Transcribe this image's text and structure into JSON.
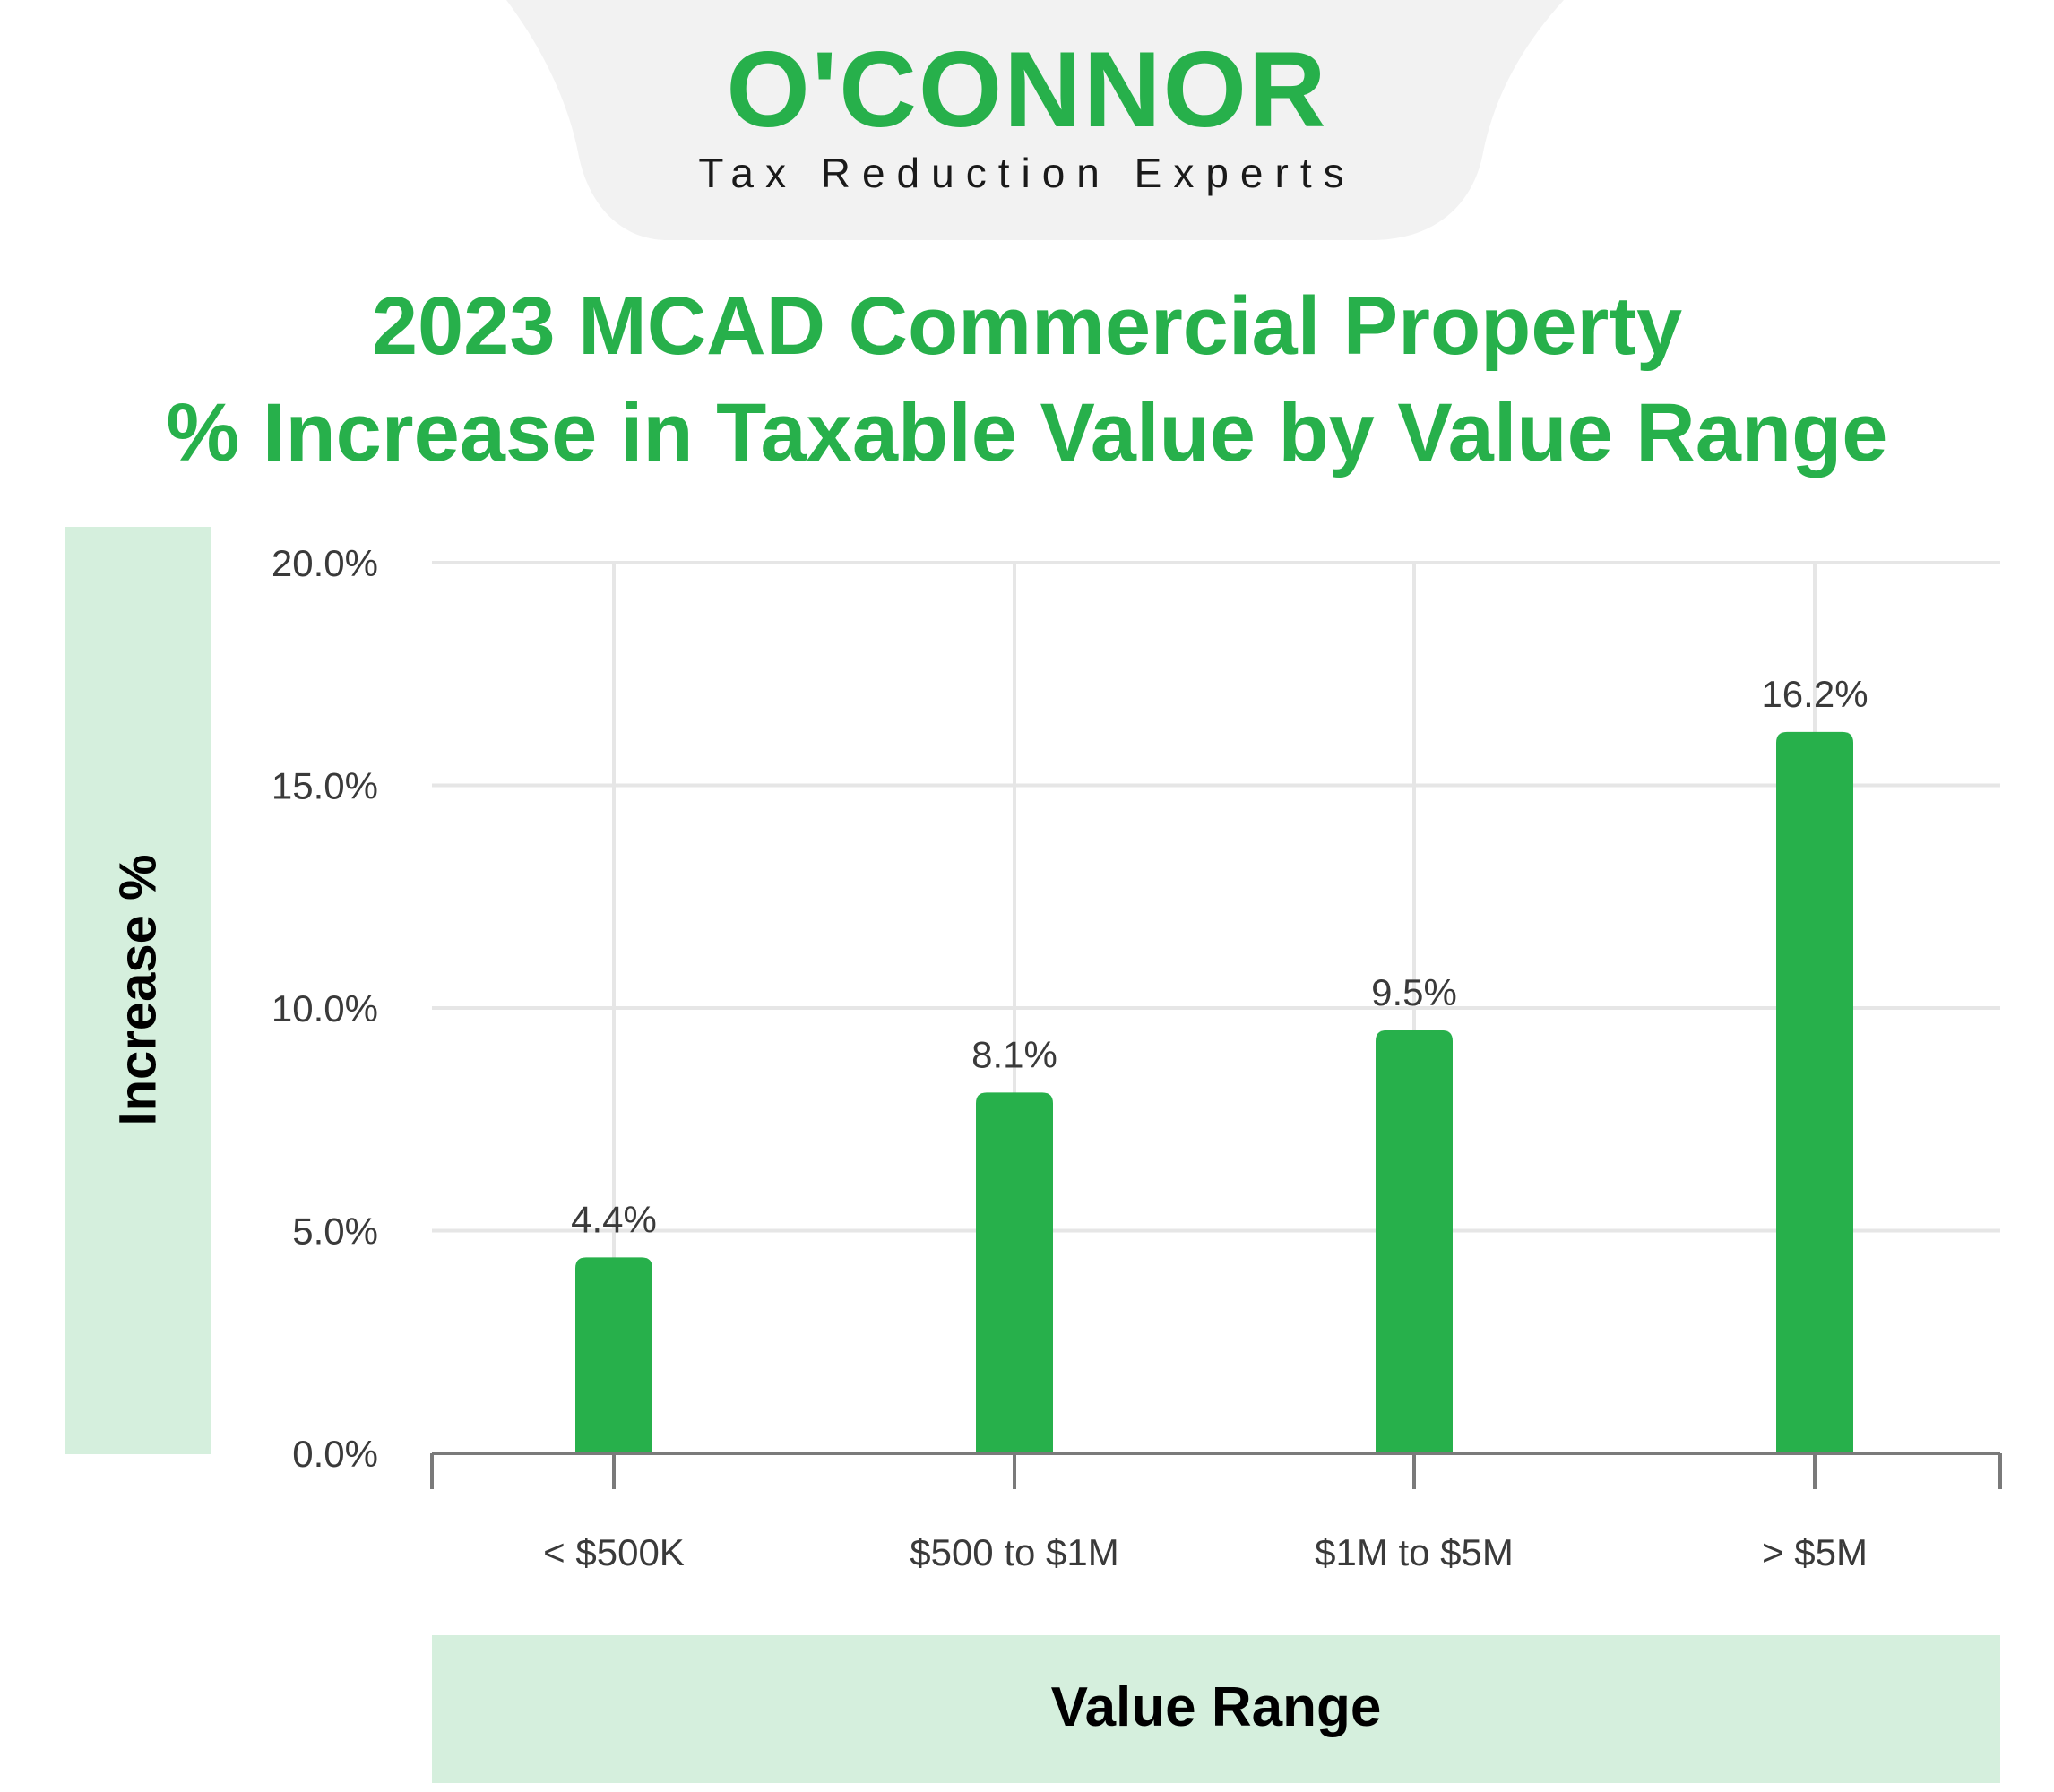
{
  "header": {
    "brand": "O'CONNOR",
    "tagline": "Tax Reduction Experts"
  },
  "colors": {
    "brand_green": "#27b04b",
    "label_band": "#d5efdd",
    "header_tab": "#f2f2f2",
    "grid": "#e6e6e6",
    "axis": "#7a7a7a"
  },
  "chart_data": {
    "type": "bar",
    "title": "2023 MCAD Commercial Property",
    "subtitle": "% Increase in Taxable Value by Value Range",
    "xlabel": "Value Range",
    "ylabel": "Increase %",
    "categories": [
      "< $500K",
      "$500 to $1M",
      "$1M to $5M",
      "> $5M"
    ],
    "values": [
      4.4,
      8.1,
      9.5,
      16.2
    ],
    "value_labels": [
      "4.4%",
      "8.1%",
      "9.5%",
      "16.2%"
    ],
    "ylim": [
      0,
      20
    ],
    "yticks": [
      0,
      5,
      10,
      15,
      20
    ],
    "ytick_labels": [
      "0.0%",
      "5.0%",
      "10.0%",
      "15.0%",
      "20.0%"
    ],
    "grid": true,
    "legend": "none",
    "bar_color": "#27b04b"
  }
}
